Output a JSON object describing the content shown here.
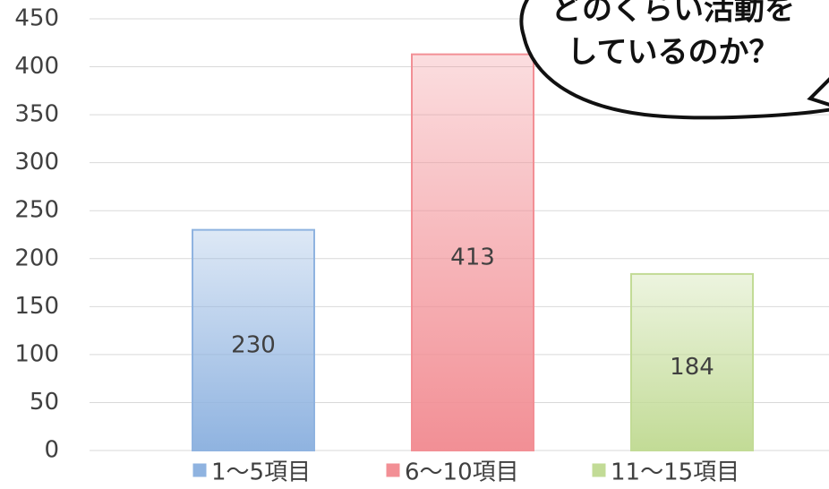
{
  "chart_data": {
    "type": "bar",
    "categories": [
      null
    ],
    "series": [
      {
        "name": "1〜5項目",
        "color": "#8fb3e0",
        "values": [
          230
        ]
      },
      {
        "name": "6〜10項目",
        "color": "#f28f95",
        "values": [
          413
        ]
      },
      {
        "name": "11〜15項目",
        "color": "#c2db96",
        "values": [
          184
        ]
      }
    ],
    "ylim": [
      0,
      450
    ],
    "yticks": [
      0,
      50,
      100,
      150,
      200,
      250,
      300,
      350,
      400,
      450
    ],
    "grid": true,
    "legend": "bottom",
    "annotations": [
      "どのくらい活動を",
      "しているのか？"
    ]
  }
}
